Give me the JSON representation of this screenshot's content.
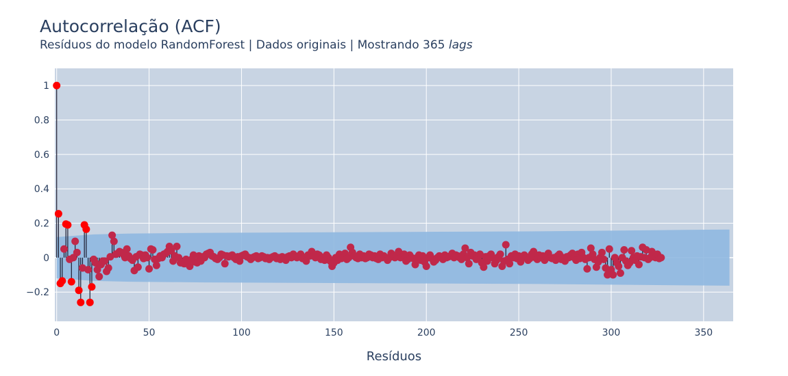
{
  "chart_data": {
    "type": "scatter",
    "title": "Autocorrelação (ACF)",
    "subtitle_prefix": "Resíduos do modelo RandomForest | Dados originais | Mostrando 365",
    "subtitle_italic": "lags",
    "xlabel": "Resíduos",
    "ylabel": "",
    "xlim": [
      -1,
      366
    ],
    "ylim": [
      -0.37,
      1.1
    ],
    "x_ticks": [
      0,
      50,
      100,
      150,
      200,
      250,
      300,
      350
    ],
    "y_ticks": [
      1,
      0.8,
      0.6,
      0.4,
      0.2,
      0,
      -0.2
    ],
    "y_tick_labels": [
      "1",
      "0.8",
      "0.6",
      "0.4",
      "0.2",
      "0",
      "−0.2"
    ],
    "grid": true,
    "significant_color": "#ff0000",
    "point_color": "#c0284a",
    "stem_color": "#1a1a2e",
    "band_color": "#8fb8e0",
    "plot_bg": "#c8d4e3",
    "confidence_band": {
      "x": [
        0,
        20,
        40,
        60,
        80,
        100,
        120,
        140,
        160,
        180,
        200,
        220,
        240,
        260,
        280,
        300,
        320,
        340,
        364
      ],
      "upper": [
        0.12,
        0.135,
        0.14,
        0.142,
        0.144,
        0.145,
        0.146,
        0.147,
        0.148,
        0.149,
        0.15,
        0.151,
        0.152,
        0.153,
        0.155,
        0.157,
        0.159,
        0.161,
        0.163
      ],
      "lower": [
        -0.12,
        -0.135,
        -0.14,
        -0.142,
        -0.144,
        -0.145,
        -0.146,
        -0.147,
        -0.148,
        -0.149,
        -0.15,
        -0.151,
        -0.152,
        -0.153,
        -0.155,
        -0.157,
        -0.159,
        -0.161,
        -0.163
      ]
    },
    "acf_head": [
      1.0,
      0.255,
      -0.15,
      -0.135,
      0.05,
      0.195,
      0.19,
      -0.01,
      -0.14,
      0.0,
      0.095,
      0.03,
      -0.19,
      -0.26,
      -0.06,
      0.19,
      0.165,
      -0.07,
      -0.26,
      -0.17,
      -0.01,
      -0.03,
      -0.07,
      -0.11,
      -0.04,
      -0.02,
      -0.02,
      -0.08,
      -0.06,
      0.005,
      0.13,
      0.095,
      0.02,
      0.025,
      0.035,
      0.03
    ],
    "acf_tail": [
      0.02,
      0.0,
      0.05,
      0.01,
      -0.005,
      -0.015,
      -0.075,
      0.005,
      -0.055,
      0.02,
      0.015,
      -0.005,
      0.015,
      0.0,
      -0.065,
      0.05,
      0.045,
      -0.01,
      -0.045,
      -0.005,
      0.01,
      0.0,
      0.02,
      0.025,
      0.035,
      0.065,
      0.04,
      -0.02,
      0.01,
      0.065,
      0.0,
      -0.03,
      -0.03,
      -0.035,
      -0.01,
      -0.02,
      -0.05,
      -0.01,
      0.015,
      -0.025,
      -0.03,
      0.01,
      -0.02,
      0.005,
      0.0,
      0.02,
      0.025,
      0.03,
      0.01,
      0.005,
      -0.005,
      -0.01,
      0.0,
      0.02,
      0.015,
      -0.035,
      0.01,
      0.005,
      0.01,
      0.015,
      0.0,
      -0.01,
      0.005,
      -0.02,
      0.01,
      0.015,
      0.02,
      0.005,
      0.0,
      -0.01,
      0.0,
      0.005,
      0.01,
      -0.005,
      0.0,
      0.01,
      0.005,
      -0.005,
      0.0,
      -0.01,
      0.0,
      0.005,
      0.01,
      -0.005,
      0.0,
      -0.01,
      0.005,
      0.0,
      -0.015,
      0.005,
      0.01,
      0.0,
      0.02,
      0.01,
      0.0,
      0.005,
      0.02,
      -0.005,
      0.0,
      -0.02,
      0.015,
      0.01,
      0.035,
      0.01,
      0.0,
      0.02,
      0.015,
      -0.01,
      0.0,
      -0.015,
      0.015,
      0.0,
      -0.02,
      -0.05,
      -0.03,
      0.0,
      -0.015,
      0.02,
      -0.005,
      0.0,
      0.025,
      -0.01,
      0.0,
      0.06,
      0.03,
      0.01,
      0.0,
      -0.005,
      0.02,
      0.0,
      0.01,
      -0.005,
      0.0,
      0.02,
      0.015,
      0.0,
      0.01,
      -0.005,
      -0.01,
      0.02,
      0.0,
      0.01,
      0.0,
      -0.015,
      0.0,
      0.025,
      0.01,
      0.0,
      0.015,
      0.035,
      0.0,
      0.005,
      0.02,
      -0.02,
      -0.01,
      0.015,
      0.0,
      -0.005,
      -0.04,
      0.0,
      0.015,
      -0.015,
      0.01,
      -0.025,
      -0.05,
      0.0,
      0.015,
      -0.005,
      -0.025,
      -0.015,
      0.0,
      0.01,
      0.0,
      -0.01,
      0.015,
      0.0,
      0.005,
      0.01,
      0.025,
      0.0,
      0.015,
      0.01,
      0.0,
      -0.01,
      0.02,
      0.055,
      0.0,
      -0.035,
      0.03,
      0.01,
      0.015,
      -0.01,
      0.0,
      0.02,
      -0.03,
      -0.055,
      0.005,
      -0.02,
      0.01,
      0.02,
      0.0,
      -0.035,
      -0.015,
      0.005,
      0.02,
      -0.05,
      -0.02,
      0.075,
      -0.01,
      -0.035,
      0.01,
      0.0,
      0.02,
      -0.005,
      0.01,
      -0.025,
      0.0,
      0.015,
      0.0,
      -0.015,
      -0.005,
      0.02,
      0.035,
      0.0,
      -0.01,
      0.015,
      0.0,
      0.01,
      -0.015,
      0.005,
      0.025,
      0.0,
      -0.005,
      0.0,
      -0.015,
      0.01,
      0.02,
      -0.01,
      0.0,
      -0.02,
      0.005,
      0.0,
      0.015,
      0.025,
      0.0,
      -0.015,
      0.02,
      -0.005,
      0.03,
      0.0,
      -0.01,
      -0.065,
      0.0,
      0.055,
      0.02,
      -0.01,
      -0.055,
      -0.025,
      0.0,
      0.03,
      -0.01,
      -0.06,
      -0.1,
      0.05,
      -0.07,
      -0.1,
      0.0,
      -0.03,
      -0.05,
      -0.09,
      0.0,
      0.045,
      -0.02,
      -0.045,
      -0.03,
      0.04,
      0.0,
      -0.015,
      0.01,
      -0.04,
      0.005,
      0.06,
      0.0,
      0.045,
      -0.01,
      0.0,
      0.035,
      0.02,
      0.0,
      0.02,
      -0.005,
      0.0
    ]
  }
}
